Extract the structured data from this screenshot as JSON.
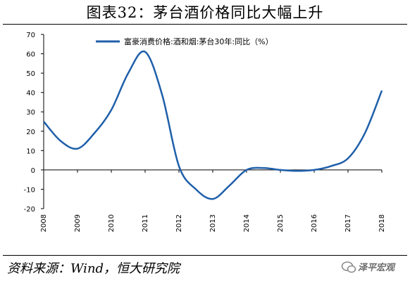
{
  "header": {
    "title": "图表32：茅台酒价格同比大幅上升"
  },
  "footer": {
    "source": "资料来源：Wind，恒大研究院",
    "watermark": "泽平宏观",
    "watermark_icon": "chat-bubble-icon"
  },
  "chart_data": {
    "type": "line",
    "title": "图表32：茅台酒价格同比大幅上升",
    "xlabel": "",
    "ylabel": "",
    "categories": [
      "2008",
      "2009",
      "2010",
      "2011",
      "2012",
      "2013",
      "2014",
      "2015",
      "2016",
      "2017",
      "2018"
    ],
    "x": [
      2008.0,
      2008.5,
      2009.0,
      2009.5,
      2010.0,
      2010.5,
      2011.0,
      2011.5,
      2012.0,
      2012.5,
      2013.0,
      2013.5,
      2014.0,
      2014.5,
      2015.0,
      2015.5,
      2016.0,
      2016.5,
      2017.0,
      2017.5,
      2018.0
    ],
    "series": [
      {
        "name": "富豪消费价格:酒和烟:茅台30年:同比（%）",
        "color": "#1f5faa",
        "values": [
          25,
          15,
          11,
          19,
          31,
          50,
          61,
          39,
          2,
          -10,
          -15,
          -8,
          0,
          1,
          0,
          -0.5,
          0,
          2,
          6,
          19,
          41
        ]
      }
    ],
    "ylim": [
      -20,
      70
    ],
    "yticks": [
      -20,
      -10,
      0,
      10,
      20,
      30,
      40,
      50,
      60,
      70
    ],
    "grid": false,
    "legend_position": "top-center"
  }
}
